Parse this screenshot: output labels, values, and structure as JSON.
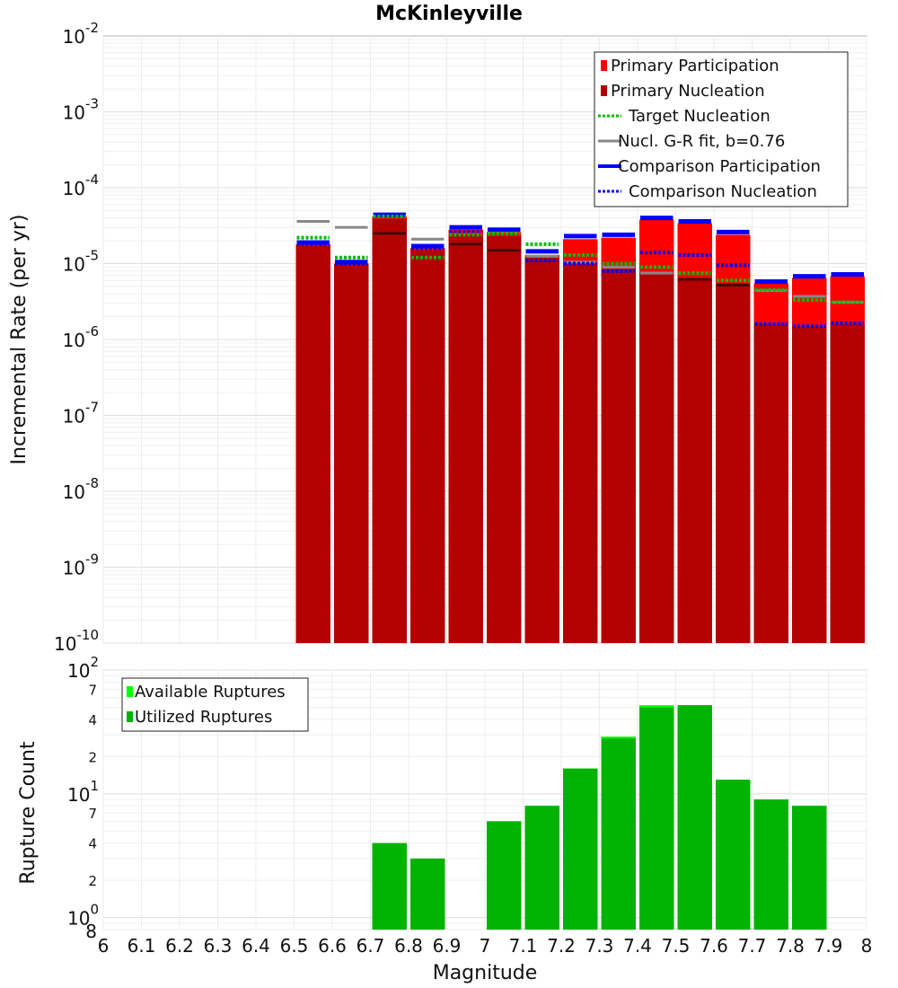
{
  "chart_data": [
    {
      "type": "bar",
      "title": "McKinleyville",
      "ylabel": "Incremental Rate (per yr)",
      "y_scale": "log",
      "ylim": [
        1e-10,
        0.01
      ],
      "xlim": [
        6,
        8
      ],
      "bin_width": 0.1,
      "x": [
        6.55,
        6.65,
        6.75,
        6.85,
        6.95,
        7.05,
        7.15,
        7.25,
        7.35,
        7.45,
        7.55,
        7.65,
        7.75,
        7.85,
        7.95
      ],
      "series": [
        {
          "name": "Primary Participation",
          "kind": "bar",
          "color": "#ff0000",
          "values": [
            1.8e-05,
            1e-05,
            4.2e-05,
            1.6e-05,
            2.8e-05,
            2.6e-05,
            1.3e-05,
            2.1e-05,
            2.2e-05,
            3.8e-05,
            3.4e-05,
            2.4e-05,
            5.5e-06,
            6.5e-06,
            6.8e-06
          ]
        },
        {
          "name": "Primary Nucleation",
          "kind": "bar",
          "color": "#b30000",
          "values": [
            1.7e-05,
            9.8e-06,
            3.9e-05,
            1.5e-05,
            2.4e-05,
            2.3e-05,
            1.2e-05,
            1e-05,
            8.5e-06,
            7.5e-06,
            6.5e-06,
            5.5e-06,
            1.6e-06,
            1.5e-06,
            1.6e-06
          ]
        },
        {
          "name": "Target Nucleation",
          "kind": "dotted",
          "color": "#00bb00",
          "values": [
            2.2e-05,
            1.2e-05,
            4.2e-05,
            1.2e-05,
            2.4e-05,
            2.5e-05,
            1.8e-05,
            1.3e-05,
            1e-05,
            9e-06,
            7.5e-06,
            6e-06,
            4.5e-06,
            3.3e-06,
            3.1e-06
          ]
        },
        {
          "name": "Nucl. G-R fit, b=0.76",
          "kind": "solid",
          "color": "#888888",
          "values": [
            3.6e-05,
            3e-05,
            2.5e-05,
            2.1e-05,
            1.8e-05,
            1.5e-05,
            1.25e-05,
            1.05e-05,
            9e-06,
            7.5e-06,
            6.2e-06,
            5.2e-06,
            4.4e-06,
            3.7e-06,
            3.1e-06
          ]
        },
        {
          "name": "Comparison Participation",
          "kind": "solid",
          "color": "#0000ff",
          "values": [
            1.9e-05,
            1.05e-05,
            4.4e-05,
            1.7e-05,
            3e-05,
            2.8e-05,
            1.45e-05,
            2.3e-05,
            2.4e-05,
            4e-05,
            3.6e-05,
            2.6e-05,
            5.8e-06,
            6.8e-06,
            7.2e-06
          ]
        },
        {
          "name": "Comparison Nucleation",
          "kind": "dotted",
          "color": "#0000ff",
          "values": [
            1.8e-05,
            1e-05,
            4.2e-05,
            1.6e-05,
            2.6e-05,
            2.5e-05,
            1.1e-05,
            1e-05,
            8e-06,
            1.4e-05,
            1.3e-05,
            9.5e-06,
            1.6e-06,
            1.5e-06,
            1.65e-06
          ]
        }
      ],
      "yticks": [
        "10-10",
        "10-9",
        "10-8",
        "10-7",
        "10-6",
        "10-5",
        "10-4",
        "10-3",
        "10-2"
      ]
    },
    {
      "type": "bar",
      "xlabel": "Magnitude",
      "ylabel": "Rupture Count",
      "y_scale": "log",
      "ylim": [
        0.8,
        100
      ],
      "xlim": [
        6,
        8
      ],
      "bin_width": 0.1,
      "x": [
        6.75,
        6.85,
        7.05,
        7.15,
        7.25,
        7.35,
        7.45,
        7.55,
        7.65,
        7.75,
        7.85
      ],
      "series": [
        {
          "name": "Available Ruptures",
          "color": "#00ff00",
          "values": [
            4,
            3,
            6,
            8,
            16,
            29,
            52,
            52,
            13,
            9,
            8
          ]
        },
        {
          "name": "Utilized Ruptures",
          "color": "#00b300",
          "values": [
            4,
            3,
            6,
            8,
            16,
            28,
            50,
            52,
            13,
            9,
            8
          ]
        }
      ],
      "yticks": [
        "100",
        "101",
        "102"
      ],
      "minor_ytick_labels": [
        "8",
        "2",
        "4",
        "7",
        "2",
        "4",
        "7"
      ],
      "xticks": [
        "6",
        "6.1",
        "6.2",
        "6.3",
        "6.4",
        "6.5",
        "6.6",
        "6.7",
        "6.8",
        "6.9",
        "7",
        "7.1",
        "7.2",
        "7.3",
        "7.4",
        "7.5",
        "7.6",
        "7.7",
        "7.8",
        "7.9",
        "8"
      ]
    }
  ]
}
